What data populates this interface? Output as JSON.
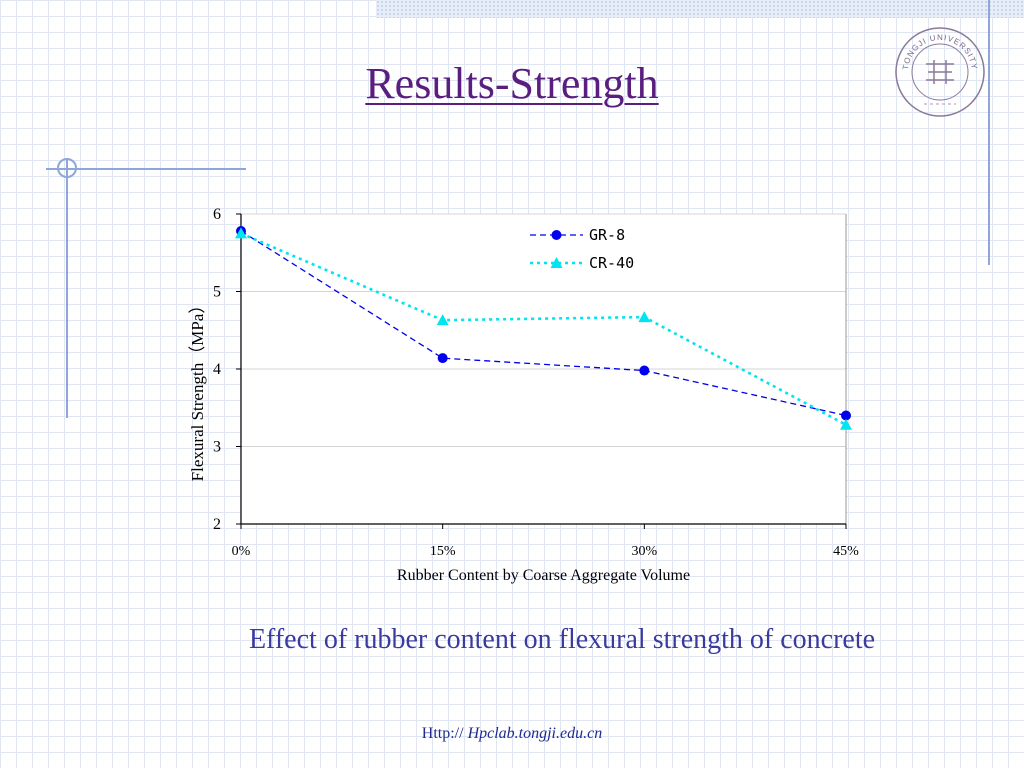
{
  "slide": {
    "title": "Results-Strength",
    "caption": "Effect of rubber content on flexural strength of concrete",
    "footer_prefix": "Http:// ",
    "footer_link": "Hpclab.tongji.edu.cn",
    "logo": {
      "icon": "university-seal-icon",
      "text": "TONGJI UNIVERSITY"
    }
  },
  "colors": {
    "title": "#5a1e80",
    "caption": "#3a3aa0",
    "gr8": "#0000ee",
    "cr40": "#00e5f0"
  },
  "chart_data": {
    "type": "line",
    "categories": [
      "0%",
      "15%",
      "30%",
      "45%"
    ],
    "series": [
      {
        "name": "GR-8",
        "values": [
          5.78,
          4.14,
          3.98,
          3.4
        ],
        "marker": "circle",
        "line": "dashed"
      },
      {
        "name": "CR-40",
        "values": [
          5.75,
          4.63,
          4.67,
          3.28
        ],
        "marker": "triangle",
        "line": "dotted"
      }
    ],
    "xlabel": "Rubber Content by Coarse Aggregate Volume",
    "ylabel": "Flexural Strength（MPa）",
    "ylim": [
      2,
      6
    ],
    "yticks": [
      2,
      3,
      4,
      5,
      6
    ],
    "grid": true,
    "legend_position": "top-right"
  }
}
